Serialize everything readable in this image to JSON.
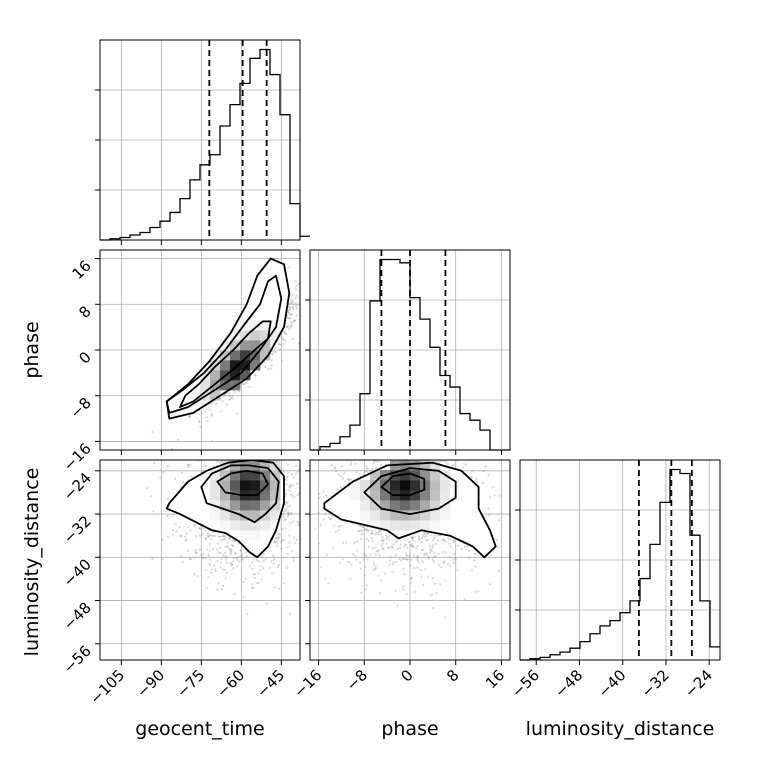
{
  "chart_data": {
    "type": "corner",
    "grid": true,
    "colors": {
      "line": "#000000",
      "grid": "#b0b0b0",
      "scatter": "#8c8c8c",
      "density_dark": "#000000",
      "density_light": "#ffffff"
    },
    "parameters": [
      {
        "name": "geocent_time",
        "label": "geocent_time",
        "range": [
          -113,
          -38
        ],
        "ticks": [
          -105,
          -90,
          -75,
          -60,
          -45
        ],
        "tick_labels": [
          "−105",
          "−90",
          "−75",
          "−60",
          "−45"
        ],
        "quantiles": [
          -72,
          -59.5,
          -50.5
        ],
        "histogram": {
          "edges_start": -113,
          "bin_width": 3.75,
          "counts": [
            0,
            1,
            2,
            4,
            6,
            10,
            15,
            22,
            33,
            48,
            60,
            68,
            91,
            108,
            125,
            145,
            152,
            132,
            100,
            29,
            3
          ]
        }
      },
      {
        "name": "phase",
        "label": "phase",
        "range": [
          -17.5,
          17.5
        ],
        "ticks": [
          -16,
          -8,
          0,
          8,
          16
        ],
        "tick_labels": [
          "−16",
          "−8",
          "0",
          "8",
          "16"
        ],
        "quantiles": [
          -5,
          0,
          6.2
        ],
        "histogram": {
          "edges_start": -17.5,
          "bin_width": 1.75,
          "counts": [
            0,
            2,
            4,
            8,
            15,
            34,
            90,
            115,
            115,
            113,
            92,
            79,
            62,
            45,
            38,
            22,
            18,
            12,
            0,
            0
          ]
        }
      },
      {
        "name": "luminosity_distance",
        "label": "luminosity_distance",
        "range": [
          -59,
          -22
        ],
        "ticks": [
          -56,
          -48,
          -40,
          -32,
          -24
        ],
        "tick_labels": [
          "−56",
          "−48",
          "−40",
          "−32",
          "−24"
        ],
        "quantiles": [
          -37,
          -31,
          -27.2
        ],
        "histogram": {
          "edges_start": -59,
          "bin_width": 1.85,
          "counts": [
            0,
            1,
            2,
            4,
            6,
            9,
            14,
            20,
            26,
            30,
            36,
            45,
            62,
            88,
            120,
            145,
            142,
            95,
            45,
            10
          ]
        }
      }
    ],
    "pairs": [
      {
        "x": "geocent_time",
        "y": "phase",
        "center": [
          -57,
          0
        ],
        "spread": [
          9,
          4.5
        ],
        "corr": 0.85,
        "density_peak": [
          -61,
          -3
        ],
        "contours": [
          [
            [
              -83,
              -10
            ],
            [
              -78,
              -9
            ],
            [
              -70,
              -6
            ],
            [
              -62,
              -3
            ],
            [
              -55,
              0
            ],
            [
              -50,
              2
            ],
            [
              -49,
              5
            ],
            [
              -52,
              5
            ],
            [
              -57,
              3
            ],
            [
              -63,
              0
            ],
            [
              -70,
              -3
            ],
            [
              -76,
              -6
            ],
            [
              -81,
              -8
            ]
          ],
          [
            [
              -87,
              -11
            ],
            [
              -80,
              -10
            ],
            [
              -70,
              -7
            ],
            [
              -60,
              -4
            ],
            [
              -53,
              0
            ],
            [
              -47,
              4
            ],
            [
              -45,
              9
            ],
            [
              -47,
              13
            ],
            [
              -50,
              12
            ],
            [
              -53,
              8
            ],
            [
              -58,
              5
            ],
            [
              -66,
              0
            ],
            [
              -74,
              -4
            ],
            [
              -82,
              -7
            ],
            [
              -88,
              -9
            ]
          ],
          [
            [
              -87,
              -12
            ],
            [
              -78,
              -11
            ],
            [
              -68,
              -8
            ],
            [
              -58,
              -5
            ],
            [
              -50,
              -1
            ],
            [
              -44,
              4
            ],
            [
              -42,
              10
            ],
            [
              -44,
              15
            ],
            [
              -49,
              16
            ],
            [
              -54,
              13
            ],
            [
              -58,
              8
            ],
            [
              -64,
              3
            ],
            [
              -72,
              -2
            ],
            [
              -80,
              -6
            ],
            [
              -88,
              -9
            ]
          ]
        ]
      },
      {
        "x": "geocent_time",
        "y": "luminosity_distance",
        "center": [
          -60,
          -30
        ],
        "spread": [
          11,
          6
        ],
        "corr": 0.0,
        "density_peak": [
          -57,
          -27
        ],
        "contours": [
          [
            [
              -69,
              -26
            ],
            [
              -64,
              -24.5
            ],
            [
              -58,
              -24
            ],
            [
              -52,
              -24.5
            ],
            [
              -50,
              -26.5
            ],
            [
              -54,
              -28.5
            ],
            [
              -60,
              -28.5
            ],
            [
              -66,
              -28
            ]
          ],
          [
            [
              -75,
              -27
            ],
            [
              -71,
              -24.5
            ],
            [
              -64,
              -23
            ],
            [
              -57,
              -23
            ],
            [
              -50,
              -23.5
            ],
            [
              -46,
              -26
            ],
            [
              -47,
              -30
            ],
            [
              -51,
              -32
            ],
            [
              -55,
              -33.5
            ],
            [
              -61,
              -32
            ],
            [
              -67,
              -31
            ],
            [
              -73,
              -30
            ]
          ],
          [
            [
              -87,
              -30
            ],
            [
              -80,
              -26
            ],
            [
              -73,
              -24
            ],
            [
              -65,
              -22.5
            ],
            [
              -56,
              -22
            ],
            [
              -48,
              -22.5
            ],
            [
              -44,
              -25
            ],
            [
              -44,
              -30
            ],
            [
              -47,
              -35
            ],
            [
              -50,
              -38
            ],
            [
              -54,
              -40
            ],
            [
              -57,
              -39
            ],
            [
              -61,
              -37
            ],
            [
              -66,
              -35.5
            ],
            [
              -71,
              -35
            ],
            [
              -77,
              -33.5
            ],
            [
              -83,
              -32
            ],
            [
              -88,
              -31
            ]
          ]
        ]
      },
      {
        "x": "phase",
        "y": "luminosity_distance",
        "center": [
          0,
          -30
        ],
        "spread": [
          6,
          6
        ],
        "corr": 0.0,
        "density_peak": [
          -1,
          -27
        ],
        "contours": [
          [
            [
              -5,
              -27
            ],
            [
              -3,
              -25
            ],
            [
              0,
              -24.5
            ],
            [
              2.5,
              -25.5
            ],
            [
              2.5,
              -27.5
            ],
            [
              0,
              -28.5
            ],
            [
              -3,
              -28.5
            ]
          ],
          [
            [
              -8,
              -28
            ],
            [
              -5,
              -25
            ],
            [
              0,
              -23.5
            ],
            [
              5,
              -24
            ],
            [
              8,
              -26
            ],
            [
              8,
              -29
            ],
            [
              5,
              -31
            ],
            [
              0,
              -32
            ],
            [
              -5,
              -31
            ]
          ],
          [
            [
              -15,
              -30
            ],
            [
              -10,
              -26
            ],
            [
              -4,
              -23
            ],
            [
              4,
              -22.5
            ],
            [
              9,
              -24
            ],
            [
              12,
              -27
            ],
            [
              12,
              -31
            ],
            [
              14,
              -35
            ],
            [
              15,
              -38
            ],
            [
              13,
              -40
            ],
            [
              11,
              -38
            ],
            [
              7,
              -36
            ],
            [
              2,
              -35
            ],
            [
              -2,
              -36.5
            ],
            [
              -4,
              -35
            ],
            [
              -8,
              -34
            ],
            [
              -12,
              -33
            ],
            [
              -15,
              -31
            ]
          ]
        ]
      }
    ]
  }
}
